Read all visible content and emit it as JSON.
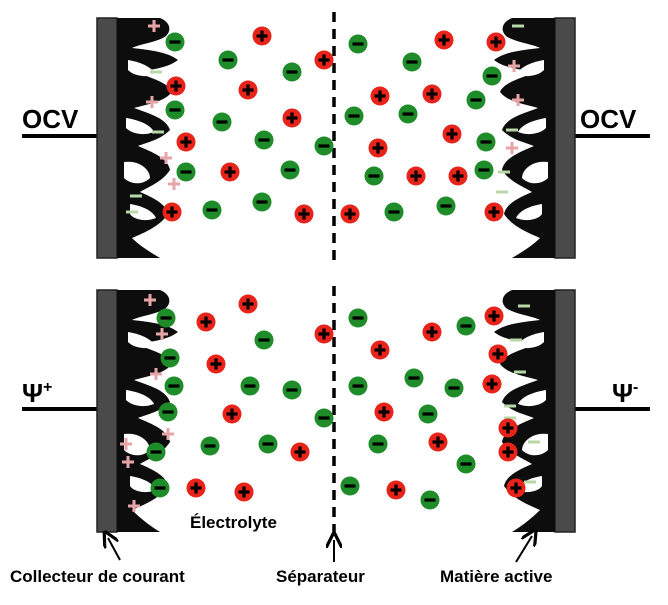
{
  "colors": {
    "collector": "#4a4a4a",
    "active_material": "#0d0d0d",
    "cation": "#e8231a",
    "anion": "#1e8c28",
    "surface_charge_plus": "#e6a6a8",
    "surface_charge_minus": "#b8d8a8"
  },
  "panels": [
    {
      "id": "ocv",
      "left_terminal": "OCV",
      "right_terminal": "OCV"
    },
    {
      "id": "polarized",
      "left_terminal": "Ψ",
      "left_sign": "+",
      "right_terminal": "Ψ",
      "right_sign": "-"
    }
  ],
  "labels": {
    "electrolyte": "Électrolyte",
    "collector": "Collecteur de courant",
    "separator": "Séparateur",
    "active_material": "Matière active"
  },
  "icons": {
    "cation": "plus-circle",
    "anion": "minus-circle",
    "arrow": "arrow-up"
  }
}
